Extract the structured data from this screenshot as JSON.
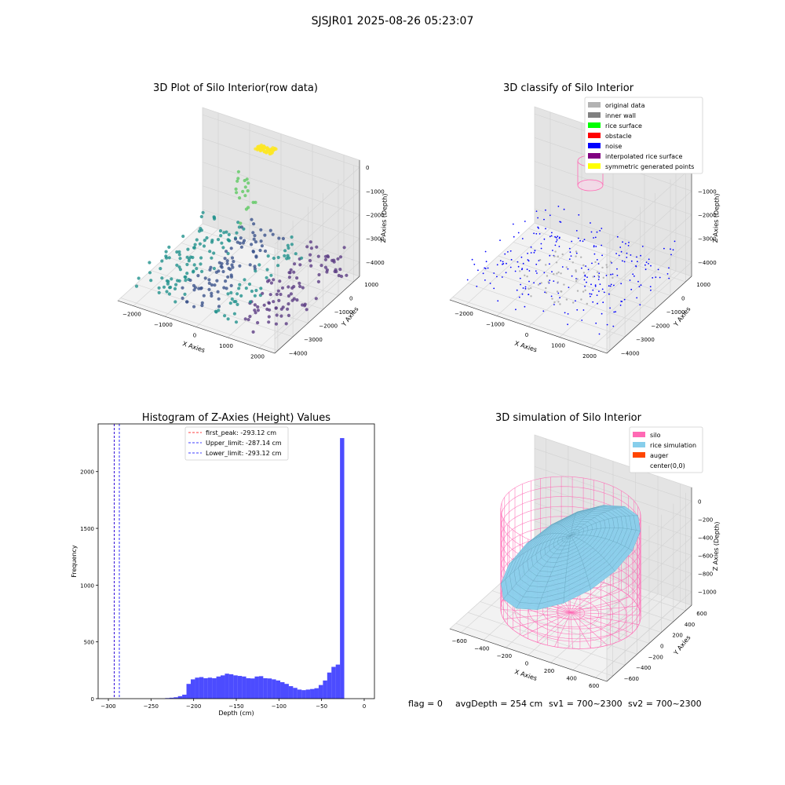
{
  "figure": {
    "title": "SJSJR01 2025-08-26 05:23:07",
    "footer": {
      "flag": "flag = 0",
      "avg_depth": "avgDepth = 254 cm",
      "sv1": "sv1 = 700~2300",
      "sv2": "sv2 = 700~2300"
    }
  },
  "chart_data": [
    {
      "type": "scatter",
      "subtype": "3d",
      "title": "3D Plot of Silo Interior(row data)",
      "xlabel": "X Axies",
      "ylabel": "Y Axies",
      "zlabel": "Z Axies (Depth)",
      "x_ticks": [
        "−2000",
        "−1000",
        "0",
        "1000",
        "2000"
      ],
      "y_ticks": [
        "1000",
        "0",
        "−1000",
        "−2000",
        "−3000",
        "−4000"
      ],
      "z_ticks": [
        "0",
        "−1000",
        "−2000",
        "−3000",
        "−4000"
      ],
      "xlim": [
        -2500,
        2500
      ],
      "ylim": [
        -4200,
        1400
      ],
      "zlim": [
        -4600,
        300
      ],
      "colormap": [
        "#440154",
        "#3b528b",
        "#21918c",
        "#5ec962",
        "#fde725"
      ],
      "point_groups": [
        {
          "desc": "surface_top",
          "x_range": [
            -400,
            100
          ],
          "y_range": [
            500,
            900
          ],
          "z_value": 0,
          "count": 70
        },
        {
          "desc": "floor_fan",
          "x_range": [
            -2200,
            2400
          ],
          "y_range": [
            -4000,
            1200
          ],
          "z_range": [
            -4300,
            -3400
          ],
          "count": 330
        },
        {
          "desc": "wall_streak",
          "x_range": [
            -800,
            -200
          ],
          "y_range": [
            -600,
            300
          ],
          "z_range": [
            -2800,
            -800
          ],
          "count": 18
        }
      ]
    },
    {
      "type": "scatter",
      "subtype": "3d",
      "title": "3D classify of Silo Interior",
      "xlabel": "X Axies",
      "ylabel": "Y Axies",
      "zlabel": "Z Axies (Depth)",
      "x_ticks": [
        "−2000",
        "−1000",
        "0",
        "1000",
        "2000"
      ],
      "y_ticks": [
        "1000",
        "0",
        "−1000",
        "−2000",
        "−3000",
        "−4000"
      ],
      "z_ticks": [
        "0",
        "−1000",
        "−2000",
        "−3000",
        "−4000"
      ],
      "xlim": [
        -2500,
        2500
      ],
      "ylim": [
        -4200,
        1400
      ],
      "zlim": [
        -4600,
        300
      ],
      "legend": [
        {
          "label": "original data",
          "color": "#b3b3b3"
        },
        {
          "label": "inner wall",
          "color": "#808080"
        },
        {
          "label": "rice surface",
          "color": "#00ff00"
        },
        {
          "label": "obstacle",
          "color": "#ff0000"
        },
        {
          "label": "noise",
          "color": "#0000ff"
        },
        {
          "label": "interpolated rice surface",
          "color": "#800080"
        },
        {
          "label": "symmetric generated points",
          "color": "#ffff00"
        }
      ],
      "legend_position": "top-right",
      "point_groups": [
        {
          "desc": "noise",
          "color": "#0000ff",
          "x_range": [
            -2200,
            2400
          ],
          "y_range": [
            -4000,
            1200
          ],
          "z_range": [
            -4300,
            -3100
          ],
          "count": 260
        },
        {
          "desc": "original data",
          "color": "#b3b3b3",
          "x_range": [
            -1200,
            1000
          ],
          "y_range": [
            -3000,
            0
          ],
          "z_range": [
            -4300,
            -3800
          ],
          "count": 60
        }
      ]
    },
    {
      "type": "bar",
      "subtype": "histogram",
      "title": "Histogram of Z-Axies (Height) Values",
      "xlabel": "Depth (cm)",
      "ylabel": "Frequency",
      "xlim": [
        -312,
        12
      ],
      "ylim": [
        0,
        2420
      ],
      "x_ticks": [
        -300,
        -250,
        -200,
        -150,
        -100,
        -50,
        0
      ],
      "x_tick_labels": [
        "−300",
        "−250",
        "−200",
        "−150",
        "−100",
        "−50",
        "0"
      ],
      "y_ticks": [
        0,
        500,
        1000,
        1500,
        2000
      ],
      "bar_color": "#0000ff",
      "bar_opacity": 0.7,
      "bin_start": -233.4,
      "bin_width": 5.0,
      "values": [
        5,
        8,
        12,
        22,
        35,
        130,
        170,
        185,
        190,
        180,
        185,
        180,
        195,
        205,
        220,
        215,
        205,
        200,
        195,
        180,
        178,
        195,
        198,
        180,
        178,
        170,
        160,
        145,
        130,
        110,
        95,
        80,
        75,
        80,
        85,
        92,
        120,
        160,
        230,
        280,
        300,
        2295
      ],
      "vlines": [
        {
          "label": "first_peak: -293.12 cm",
          "x": -293.12,
          "color": "#ff0000"
        },
        {
          "label": "Upper_limit: -287.14 cm",
          "x": -287.14,
          "color": "#0000ff"
        },
        {
          "label": "Lower_limit: -293.12 cm",
          "x": -293.12,
          "color": "#0000ff"
        }
      ],
      "legend_position": "top-center"
    },
    {
      "type": "surface",
      "subtype": "3d",
      "title": "3D simulation of Silo Interior",
      "xlabel": "X Axies",
      "ylabel": "Y Axies",
      "zlabel": "Z Axies (Depth)",
      "x_ticks": [
        "−600",
        "−400",
        "−200",
        "0",
        "200",
        "400",
        "600"
      ],
      "y_ticks": [
        "600",
        "400",
        "200",
        "0",
        "−200",
        "−400",
        "−600"
      ],
      "z_ticks": [
        "0",
        "−200",
        "−400",
        "−600",
        "−800",
        "−1000"
      ],
      "xlim": [
        -700,
        700
      ],
      "ylim": [
        -700,
        700
      ],
      "zlim": [
        -1150,
        150
      ],
      "legend": [
        {
          "label": "silo",
          "color": "#ff69b4"
        },
        {
          "label": "rice simulation",
          "color": "#87ceeb"
        },
        {
          "label": "auger",
          "color": "#ff4500"
        },
        {
          "label": "center(0,0)",
          "color": "#ffffff"
        }
      ],
      "legend_position": "top-right",
      "silo_radius": 550,
      "silo_z_top": 0,
      "silo_z_bottom": -1100,
      "surface_z_at_center": -500
    }
  ]
}
